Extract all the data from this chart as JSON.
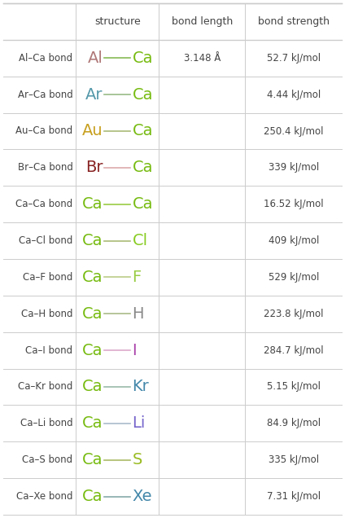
{
  "headers": [
    "",
    "structure",
    "bond length",
    "bond strength"
  ],
  "rows": [
    {
      "label": "Al–Ca bond",
      "elem1": "Al",
      "color1": "#b07878",
      "elem2": "Ca",
      "color2": "#77bb11",
      "bond_length": "3.148 Å",
      "bond_strength": "52.7 kJ/mol",
      "line_color": "#88bb55"
    },
    {
      "label": "Ar–Ca bond",
      "elem1": "Ar",
      "color1": "#5599aa",
      "elem2": "Ca",
      "color2": "#77bb11",
      "bond_length": "",
      "bond_strength": "4.44 kJ/mol",
      "line_color": "#99bb88"
    },
    {
      "label": "Au–Ca bond",
      "elem1": "Au",
      "color1": "#c8a020",
      "elem2": "Ca",
      "color2": "#77bb11",
      "bond_length": "",
      "bond_strength": "250.4 kJ/mol",
      "line_color": "#aabb77"
    },
    {
      "label": "Br–Ca bond",
      "elem1": "Br",
      "color1": "#882222",
      "elem2": "Ca",
      "color2": "#77bb11",
      "bond_length": "",
      "bond_strength": "339 kJ/mol",
      "line_color": "#ddaaaa"
    },
    {
      "label": "Ca–Ca bond",
      "elem1": "Ca",
      "color1": "#77bb11",
      "elem2": "Ca",
      "color2": "#77bb11",
      "bond_length": "",
      "bond_strength": "16.52 kJ/mol",
      "line_color": "#99cc44"
    },
    {
      "label": "Ca–Cl bond",
      "elem1": "Ca",
      "color1": "#77bb11",
      "elem2": "Cl",
      "color2": "#88cc22",
      "bond_length": "",
      "bond_strength": "409 kJ/mol",
      "line_color": "#aabb77"
    },
    {
      "label": "Ca–F bond",
      "elem1": "Ca",
      "color1": "#77bb11",
      "elem2": "F",
      "color2": "#99cc44",
      "bond_length": "",
      "bond_strength": "529 kJ/mol",
      "line_color": "#bbcc88"
    },
    {
      "label": "Ca–H bond",
      "elem1": "Ca",
      "color1": "#77bb11",
      "elem2": "H",
      "color2": "#888888",
      "bond_length": "",
      "bond_strength": "223.8 kJ/mol",
      "line_color": "#aabb88"
    },
    {
      "label": "Ca–I bond",
      "elem1": "Ca",
      "color1": "#77bb11",
      "elem2": "I",
      "color2": "#aa44aa",
      "bond_length": "",
      "bond_strength": "284.7 kJ/mol",
      "line_color": "#ddaacc"
    },
    {
      "label": "Ca–Kr bond",
      "elem1": "Ca",
      "color1": "#77bb11",
      "elem2": "Kr",
      "color2": "#4488aa",
      "bond_length": "",
      "bond_strength": "5.15 kJ/mol",
      "line_color": "#99bbaa"
    },
    {
      "label": "Ca–Li bond",
      "elem1": "Ca",
      "color1": "#77bb11",
      "elem2": "Li",
      "color2": "#7766cc",
      "bond_length": "",
      "bond_strength": "84.9 kJ/mol",
      "line_color": "#aabbcc"
    },
    {
      "label": "Ca–S bond",
      "elem1": "Ca",
      "color1": "#77bb11",
      "elem2": "S",
      "color2": "#99bb22",
      "bond_length": "",
      "bond_strength": "335 kJ/mol",
      "line_color": "#aabb66"
    },
    {
      "label": "Ca–Xe bond",
      "elem1": "Ca",
      "color1": "#77bb11",
      "elem2": "Xe",
      "color2": "#4488aa",
      "bond_length": "",
      "bond_strength": "7.31 kJ/mol",
      "line_color": "#88aaaa"
    }
  ],
  "grid_color": "#cccccc",
  "bg_color": "#ffffff",
  "text_color": "#444444"
}
